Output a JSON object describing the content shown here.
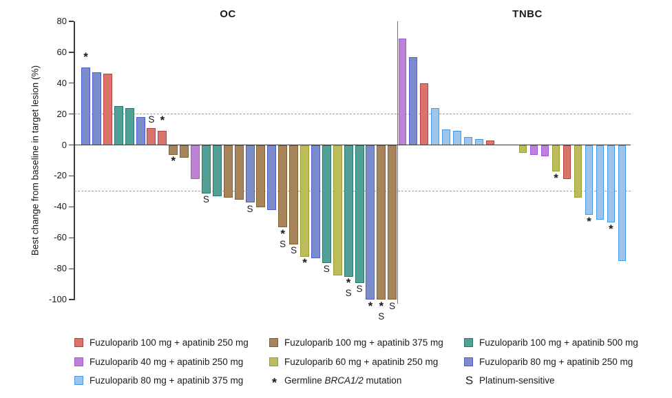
{
  "chart_data": {
    "type": "bar",
    "title": "",
    "ylabel": "Best change from baseline in target lesion (%)",
    "ylim": [
      -100,
      80
    ],
    "yticks": [
      80,
      60,
      40,
      20,
      0,
      -20,
      -40,
      -60,
      -80,
      -100
    ],
    "reference_lines": [
      20,
      -30
    ],
    "grid": "dashed reference lines at +20 and -30 only",
    "legend_position": "bottom",
    "marker_meanings": {
      "*": "Germline BRCA1/2 mutation",
      "S": "Platinum-sensitive"
    },
    "colors": {
      "red": {
        "fill": "#D9746C",
        "border": "#B8423B"
      },
      "brown": {
        "fill": "#A8845A",
        "border": "#84602F"
      },
      "teal": {
        "fill": "#53A096",
        "border": "#23796D"
      },
      "orchid": {
        "fill": "#BC82D6",
        "border": "#A855DD"
      },
      "olive": {
        "fill": "#BCBD5A",
        "border": "#999E2F"
      },
      "slate": {
        "fill": "#7B8CCB",
        "border": "#5158D4"
      },
      "lightblue": {
        "fill": "#9FC4EA",
        "border": "#4496E8"
      }
    },
    "panels": [
      {
        "label": "OC",
        "bars": [
          {
            "slot": 0,
            "value": 50,
            "color": "slate",
            "marks": "*"
          },
          {
            "slot": 1,
            "value": 47,
            "color": "slate",
            "marks": ""
          },
          {
            "slot": 2,
            "value": 46,
            "color": "red",
            "marks": ""
          },
          {
            "slot": 3,
            "value": 25,
            "color": "teal",
            "marks": ""
          },
          {
            "slot": 4,
            "value": 24,
            "color": "teal",
            "marks": ""
          },
          {
            "slot": 5,
            "value": 18,
            "color": "slate",
            "marks": ""
          },
          {
            "slot": 6,
            "value": 11,
            "color": "red",
            "marks": "S"
          },
          {
            "slot": 7,
            "value": 9,
            "color": "red",
            "marks": "*"
          },
          {
            "slot": 8,
            "value": -6,
            "color": "brown",
            "marks": "*"
          },
          {
            "slot": 9,
            "value": -8,
            "color": "brown",
            "marks": ""
          },
          {
            "slot": 10,
            "value": -22,
            "color": "orchid",
            "marks": ""
          },
          {
            "slot": 11,
            "value": -31,
            "color": "teal",
            "marks": "S"
          },
          {
            "slot": 12,
            "value": -33,
            "color": "teal",
            "marks": ""
          },
          {
            "slot": 13,
            "value": -34,
            "color": "brown",
            "marks": ""
          },
          {
            "slot": 14,
            "value": -35,
            "color": "brown",
            "marks": ""
          },
          {
            "slot": 15,
            "value": -37,
            "color": "slate",
            "marks": "S"
          },
          {
            "slot": 16,
            "value": -40,
            "color": "brown",
            "marks": ""
          },
          {
            "slot": 17,
            "value": -42,
            "color": "slate",
            "marks": ""
          },
          {
            "slot": 18,
            "value": -53,
            "color": "brown",
            "marks": "*S"
          },
          {
            "slot": 19,
            "value": -64,
            "color": "brown",
            "marks": "S"
          },
          {
            "slot": 20,
            "value": -72,
            "color": "olive",
            "marks": "*"
          },
          {
            "slot": 21,
            "value": -73,
            "color": "slate",
            "marks": ""
          },
          {
            "slot": 22,
            "value": -76,
            "color": "teal",
            "marks": "S"
          },
          {
            "slot": 23,
            "value": -84,
            "color": "olive",
            "marks": ""
          },
          {
            "slot": 24,
            "value": -85,
            "color": "teal",
            "marks": "*S"
          },
          {
            "slot": 25,
            "value": -89,
            "color": "teal",
            "marks": "S"
          },
          {
            "slot": 26,
            "value": -100,
            "color": "slate",
            "marks": "*"
          },
          {
            "slot": 27,
            "value": -100,
            "color": "brown",
            "marks": "*S"
          },
          {
            "slot": 28,
            "value": -100,
            "color": "brown",
            "marks": "S"
          }
        ]
      },
      {
        "label": "TNBC",
        "bars": [
          {
            "slot": 0,
            "value": 69,
            "color": "orchid",
            "marks": ""
          },
          {
            "slot": 1,
            "value": 57,
            "color": "slate",
            "marks": ""
          },
          {
            "slot": 2,
            "value": 40,
            "color": "red",
            "marks": ""
          },
          {
            "slot": 3,
            "value": 24,
            "color": "lightblue",
            "marks": ""
          },
          {
            "slot": 4,
            "value": 10,
            "color": "lightblue",
            "marks": ""
          },
          {
            "slot": 5,
            "value": 9,
            "color": "lightblue",
            "marks": ""
          },
          {
            "slot": 6,
            "value": 5,
            "color": "lightblue",
            "marks": ""
          },
          {
            "slot": 7,
            "value": 4,
            "color": "lightblue",
            "marks": ""
          },
          {
            "slot": 8,
            "value": 3,
            "color": "red",
            "marks": ""
          },
          {
            "slot": 11,
            "value": -5,
            "color": "olive",
            "marks": ""
          },
          {
            "slot": 12,
            "value": -6,
            "color": "orchid",
            "marks": ""
          },
          {
            "slot": 13,
            "value": -7,
            "color": "orchid",
            "marks": ""
          },
          {
            "slot": 14,
            "value": -17,
            "color": "olive",
            "marks": "*"
          },
          {
            "slot": 15,
            "value": -22,
            "color": "red",
            "marks": ""
          },
          {
            "slot": 16,
            "value": -34,
            "color": "olive",
            "marks": ""
          },
          {
            "slot": 17,
            "value": -45,
            "color": "lightblue",
            "marks": "*"
          },
          {
            "slot": 18,
            "value": -48,
            "color": "lightblue",
            "marks": ""
          },
          {
            "slot": 19,
            "value": -50,
            "color": "lightblue",
            "marks": "*"
          },
          {
            "slot": 20,
            "value": -75,
            "color": "lightblue",
            "marks": ""
          }
        ]
      }
    ],
    "legend": [
      {
        "swatch": "red",
        "label": "Fuzuloparib 100 mg + apatinib 250 mg"
      },
      {
        "swatch": "brown",
        "label": "Fuzuloparib 100 mg + apatinib 375 mg"
      },
      {
        "swatch": "teal",
        "label": "Fuzuloparib 100 mg + apatinib 500 mg"
      },
      {
        "swatch": "orchid",
        "label": "Fuzuloparib 40 mg + apatinib 250 mg"
      },
      {
        "swatch": "olive",
        "label": "Fuzuloparib 60 mg + apatinib 250 mg"
      },
      {
        "swatch": "slate",
        "label": "Fuzuloparib 80 mg + apatinib 250 mg"
      },
      {
        "swatch": "lightblue",
        "label": "Fuzuloparib 80 mg + apatinib 375 mg"
      },
      {
        "symbol": "*",
        "label_parts": [
          {
            "t": "Germline "
          },
          {
            "t": "BRCA1/2",
            "italic": true
          },
          {
            "t": " mutation"
          }
        ]
      },
      {
        "symbol": "S",
        "label_parts": [
          {
            "t": "Platinum-sensitive"
          }
        ]
      }
    ]
  }
}
